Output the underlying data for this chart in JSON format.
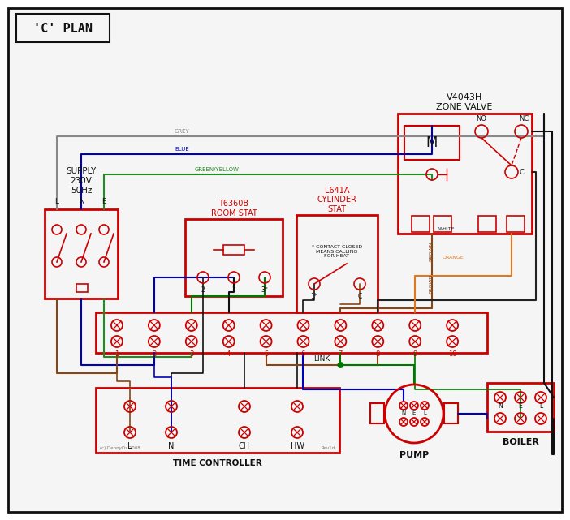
{
  "title": "'C' PLAN",
  "bg": "#ffffff",
  "RED": "#cc0000",
  "BLUE": "#0000bb",
  "GREEN": "#007700",
  "GREY": "#888888",
  "BROWN": "#8B4513",
  "ORANGE": "#e07820",
  "BLACK": "#111111",
  "GY": "#228B22",
  "supply_label": "SUPPLY\n230V\n50Hz",
  "zone_title": "V4043H\nZONE VALVE",
  "rs_title": "T6360B\nROOM STAT",
  "cs_title": "L641A\nCYLINDER\nSTAT",
  "tc_label": "TIME CONTROLLER",
  "pump_label": "PUMP",
  "boiler_label": "BOILER",
  "contact_note": "* CONTACT CLOSED\nMEANS CALLING\nFOR HEAT",
  "copyright": "(c) DennyOz 2008",
  "rev": "Rev1d",
  "lne": "L  N  E"
}
